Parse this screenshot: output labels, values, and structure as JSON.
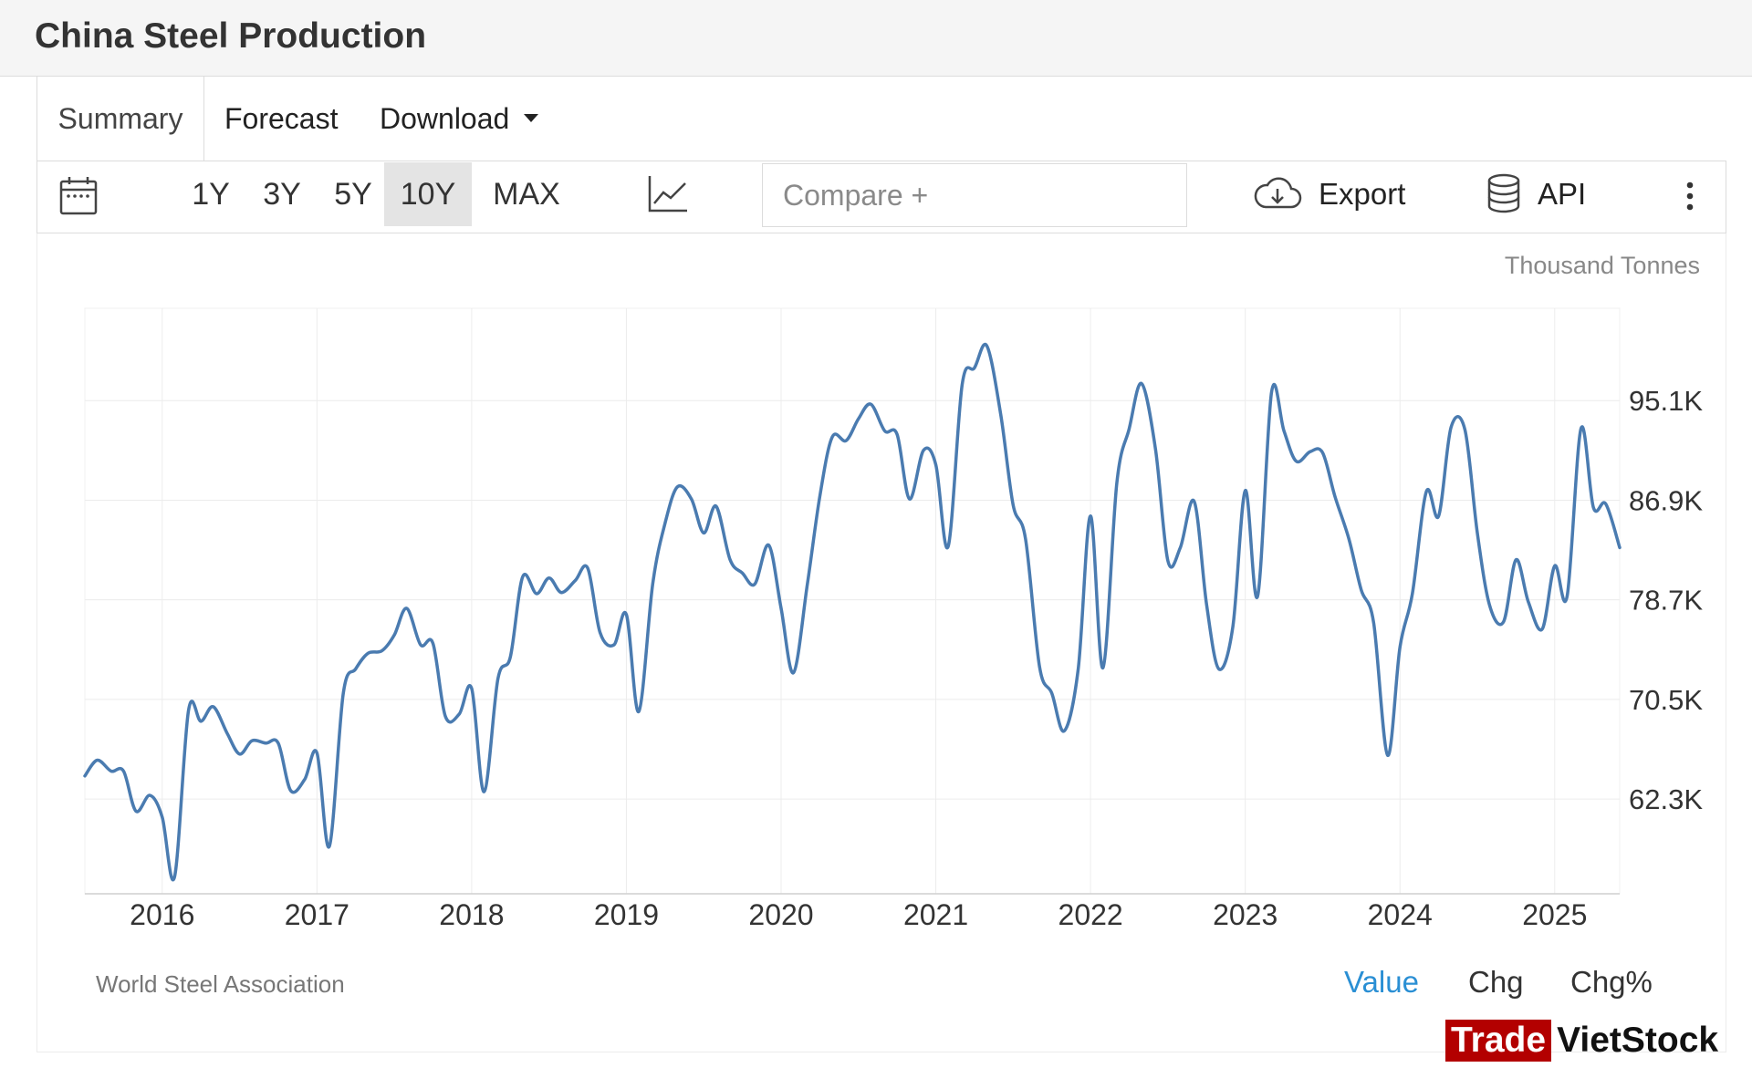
{
  "header": {
    "title": "China Steel Production"
  },
  "tabs": {
    "summary": "Summary",
    "forecast": "Forecast",
    "download": "Download"
  },
  "toolbar": {
    "ranges": [
      "1Y",
      "3Y",
      "5Y",
      "10Y",
      "MAX"
    ],
    "active_range": "10Y",
    "compare_placeholder": "Compare +",
    "export_label": "Export",
    "api_label": "API"
  },
  "chart_data": {
    "type": "line",
    "title": "China Steel Production",
    "unit": "Thousand Tonnes",
    "source": "World Steel Association",
    "series": [
      {
        "name": "China Steel Production",
        "color": "#4a7bb0",
        "values": [
          [
            2015.5,
            64200
          ],
          [
            2015.58,
            65500
          ],
          [
            2015.67,
            64600
          ],
          [
            2015.75,
            64600
          ],
          [
            2015.83,
            61300
          ],
          [
            2015.92,
            62600
          ],
          [
            2016.0,
            60800
          ],
          [
            2016.08,
            55900
          ],
          [
            2016.17,
            69600
          ],
          [
            2016.25,
            68700
          ],
          [
            2016.33,
            69900
          ],
          [
            2016.42,
            67700
          ],
          [
            2016.5,
            66000
          ],
          [
            2016.58,
            67100
          ],
          [
            2016.67,
            66900
          ],
          [
            2016.75,
            66900
          ],
          [
            2016.83,
            63000
          ],
          [
            2016.92,
            63900
          ],
          [
            2017.0,
            66100
          ],
          [
            2017.08,
            58400
          ],
          [
            2017.17,
            71000
          ],
          [
            2017.25,
            73000
          ],
          [
            2017.33,
            74300
          ],
          [
            2017.42,
            74500
          ],
          [
            2017.5,
            75800
          ],
          [
            2017.58,
            78000
          ],
          [
            2017.67,
            75000
          ],
          [
            2017.75,
            75100
          ],
          [
            2017.83,
            69100
          ],
          [
            2017.92,
            69300
          ],
          [
            2018.0,
            71400
          ],
          [
            2018.08,
            62900
          ],
          [
            2018.17,
            72200
          ],
          [
            2018.25,
            74000
          ],
          [
            2018.33,
            80600
          ],
          [
            2018.42,
            79200
          ],
          [
            2018.5,
            80500
          ],
          [
            2018.58,
            79300
          ],
          [
            2018.67,
            80300
          ],
          [
            2018.75,
            81300
          ],
          [
            2018.83,
            76000
          ],
          [
            2018.92,
            75000
          ],
          [
            2019.0,
            77500
          ],
          [
            2019.08,
            69500
          ],
          [
            2019.17,
            80000
          ],
          [
            2019.25,
            85000
          ],
          [
            2019.33,
            88000
          ],
          [
            2019.42,
            87000
          ],
          [
            2019.5,
            84200
          ],
          [
            2019.58,
            86400
          ],
          [
            2019.67,
            82000
          ],
          [
            2019.75,
            80900
          ],
          [
            2019.83,
            80000
          ],
          [
            2019.92,
            83200
          ],
          [
            2020.0,
            78000
          ],
          [
            2020.08,
            72700
          ],
          [
            2020.17,
            80000
          ],
          [
            2020.25,
            87200
          ],
          [
            2020.33,
            92100
          ],
          [
            2020.42,
            91800
          ],
          [
            2020.5,
            93600
          ],
          [
            2020.58,
            94800
          ],
          [
            2020.67,
            92600
          ],
          [
            2020.75,
            92300
          ],
          [
            2020.83,
            87000
          ],
          [
            2020.92,
            91000
          ],
          [
            2021.0,
            89800
          ],
          [
            2021.08,
            83100
          ],
          [
            2021.17,
            96400
          ],
          [
            2021.25,
            97800
          ],
          [
            2021.33,
            99600
          ],
          [
            2021.42,
            93900
          ],
          [
            2021.5,
            86500
          ],
          [
            2021.58,
            83700
          ],
          [
            2021.67,
            73200
          ],
          [
            2021.75,
            71000
          ],
          [
            2021.83,
            67900
          ],
          [
            2021.92,
            73000
          ],
          [
            2022.0,
            85600
          ],
          [
            2022.08,
            73100
          ],
          [
            2022.17,
            88300
          ],
          [
            2022.25,
            92800
          ],
          [
            2022.33,
            96500
          ],
          [
            2022.42,
            91100
          ],
          [
            2022.5,
            81900
          ],
          [
            2022.58,
            83000
          ],
          [
            2022.67,
            86800
          ],
          [
            2022.75,
            78300
          ],
          [
            2022.83,
            73000
          ],
          [
            2022.92,
            76500
          ],
          [
            2023.0,
            87700
          ],
          [
            2023.08,
            79000
          ],
          [
            2023.17,
            95800
          ],
          [
            2023.25,
            92600
          ],
          [
            2023.33,
            90100
          ],
          [
            2023.42,
            90900
          ],
          [
            2023.5,
            90800
          ],
          [
            2023.58,
            87200
          ],
          [
            2023.67,
            83700
          ],
          [
            2023.75,
            79500
          ],
          [
            2023.83,
            76800
          ],
          [
            2023.92,
            65900
          ],
          [
            2024.0,
            74800
          ],
          [
            2024.08,
            79200
          ],
          [
            2024.17,
            87600
          ],
          [
            2024.25,
            85600
          ],
          [
            2024.33,
            92900
          ],
          [
            2024.42,
            92700
          ],
          [
            2024.5,
            84200
          ],
          [
            2024.58,
            78200
          ],
          [
            2024.67,
            76900
          ],
          [
            2024.75,
            82000
          ],
          [
            2024.83,
            78500
          ],
          [
            2024.92,
            76300
          ],
          [
            2025.0,
            81500
          ],
          [
            2025.08,
            79000
          ],
          [
            2025.17,
            92800
          ],
          [
            2025.25,
            86300
          ],
          [
            2025.33,
            86600
          ],
          [
            2025.42,
            83000
          ]
        ]
      }
    ],
    "x_ticks": [
      "2016",
      "2017",
      "2018",
      "2019",
      "2020",
      "2021",
      "2022",
      "2023",
      "2024",
      "2025"
    ],
    "x_tick_values": [
      2016,
      2017,
      2018,
      2019,
      2020,
      2021,
      2022,
      2023,
      2024,
      2025
    ],
    "xlim": [
      2015.5,
      2025.42
    ],
    "y_ticks": [
      "62.3K",
      "70.5K",
      "78.7K",
      "86.9K",
      "95.1K"
    ],
    "y_tick_values": [
      62300,
      70500,
      78700,
      86900,
      95100
    ],
    "ylim": [
      54500,
      102700
    ],
    "y_axis_side": "right",
    "grid": true
  },
  "footer": {
    "modes": [
      "Value",
      "Chg",
      "Chg%"
    ],
    "active_mode": "Value"
  },
  "watermark": {
    "part1": "Trade",
    "part2": "VietStock"
  }
}
